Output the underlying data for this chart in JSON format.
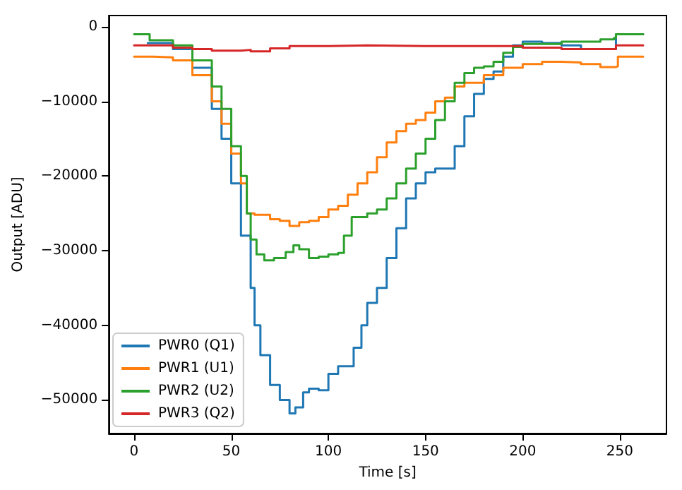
{
  "chart_data": {
    "type": "step",
    "xlabel": "Time [s]",
    "ylabel": "Output [ADU]",
    "xlim": [
      -13,
      274
    ],
    "xticks": [
      0,
      50,
      100,
      150,
      200,
      250
    ],
    "ylim": [
      -54500,
      1500
    ],
    "yticks": [
      {
        "value": 0,
        "label": "0"
      },
      {
        "value": -10000,
        "label": "−10000"
      },
      {
        "value": -20000,
        "label": "−20000"
      },
      {
        "value": -30000,
        "label": "−30000"
      },
      {
        "value": -40000,
        "label": "−40000"
      },
      {
        "value": -50000,
        "label": "−50000"
      }
    ],
    "legend": "bottom left",
    "grid": false,
    "line_style": "solid",
    "marker": "none",
    "series": [
      {
        "name": "PWR0 (Q1)",
        "color": "#1f77b4",
        "x": [
          7,
          20,
          30,
          40,
          45,
          50,
          55,
          60,
          62,
          65,
          70,
          75,
          80,
          83,
          87,
          90,
          95,
          100,
          105,
          110,
          113,
          117,
          120,
          125,
          130,
          135,
          140,
          145,
          150,
          155,
          160,
          165,
          170,
          175,
          180,
          185,
          190,
          195,
          200,
          210,
          220,
          230,
          245,
          248,
          262
        ],
        "values": [
          -2200,
          -3000,
          -5500,
          -11000,
          -15000,
          -21000,
          -28000,
          -35000,
          -40000,
          -44000,
          -48000,
          -50000,
          -51800,
          -51000,
          -49000,
          -48500,
          -48700,
          -46500,
          -45500,
          -45500,
          -43000,
          -40000,
          -37000,
          -35000,
          -31000,
          -27000,
          -23000,
          -21000,
          -19500,
          -19000,
          -19000,
          -16000,
          -12000,
          -9000,
          -7000,
          -6000,
          -4000,
          -2500,
          -2000,
          -2200,
          -2500,
          -3000,
          -3000,
          -1000,
          -1000
        ]
      },
      {
        "name": "PWR1 (U1)",
        "color": "#ff7f0e",
        "x": [
          0,
          10,
          20,
          30,
          40,
          45,
          50,
          55,
          58,
          62,
          70,
          75,
          80,
          85,
          90,
          95,
          100,
          105,
          110,
          115,
          120,
          125,
          130,
          135,
          140,
          145,
          150,
          155,
          160,
          165,
          170,
          180,
          190,
          200,
          210,
          220,
          230,
          240,
          248,
          249,
          262
        ],
        "values": [
          -4000,
          -4100,
          -4500,
          -6500,
          -10000,
          -13000,
          -17000,
          -21000,
          -25000,
          -25200,
          -25800,
          -26000,
          -26700,
          -26200,
          -26000,
          -25500,
          -24500,
          -24000,
          -22500,
          -21000,
          -19500,
          -17500,
          -15500,
          -14000,
          -13000,
          -12500,
          -11500,
          -10000,
          -9500,
          -8000,
          -7500,
          -6500,
          -5500,
          -5000,
          -4700,
          -4800,
          -5000,
          -5400,
          -5300,
          -4000,
          -4000
        ]
      },
      {
        "name": "PWR2 (U2)",
        "color": "#2ca02c",
        "x": [
          0,
          7,
          8,
          20,
          30,
          40,
          45,
          50,
          55,
          58,
          60,
          63,
          67,
          72,
          78,
          82,
          85,
          90,
          95,
          100,
          105,
          108,
          112,
          120,
          125,
          130,
          135,
          140,
          145,
          150,
          155,
          160,
          165,
          170,
          175,
          180,
          185,
          190,
          195,
          200,
          220,
          240,
          247,
          248,
          262
        ],
        "values": [
          -1000,
          -1000,
          -1800,
          -2500,
          -4500,
          -8000,
          -11000,
          -16000,
          -20000,
          -25000,
          -28500,
          -30500,
          -31300,
          -31000,
          -30200,
          -29300,
          -29800,
          -31000,
          -30800,
          -30500,
          -30300,
          -28000,
          -25500,
          -25000,
          -24500,
          -23000,
          -21000,
          -19000,
          -17000,
          -15000,
          -12500,
          -10000,
          -7500,
          -6200,
          -5500,
          -5300,
          -4700,
          -3500,
          -2700,
          -2300,
          -2000,
          -1700,
          -1500,
          -1000,
          -1000
        ]
      },
      {
        "name": "PWR3 (Q2)",
        "color": "#d62728",
        "x": [
          0,
          20,
          30,
          40,
          55,
          60,
          70,
          80,
          100,
          120,
          150,
          180,
          200,
          220,
          240,
          248,
          262
        ],
        "values": [
          -2500,
          -2800,
          -3000,
          -3200,
          -3100,
          -3300,
          -2900,
          -2600,
          -2500,
          -2600,
          -2600,
          -2600,
          -2800,
          -3000,
          -3000,
          -2500,
          -2500
        ]
      }
    ]
  }
}
